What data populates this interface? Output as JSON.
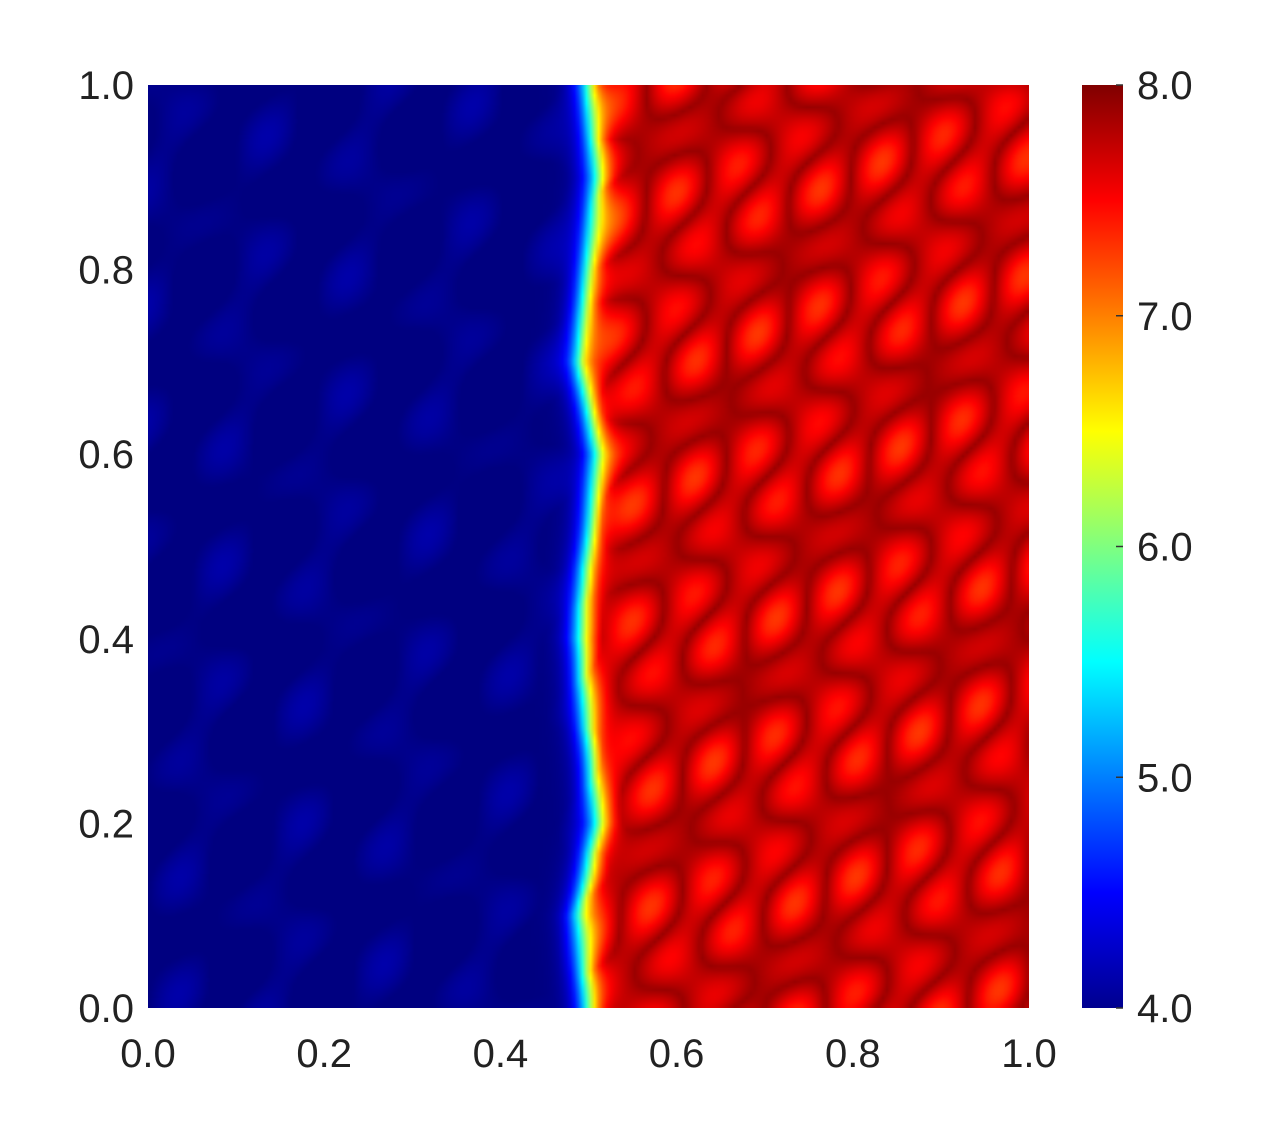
{
  "chart_data": {
    "type": "heatmap",
    "title": "",
    "xlabel": "",
    "ylabel": "",
    "xlim": [
      0.0,
      1.0
    ],
    "ylim": [
      0.0,
      1.0
    ],
    "x_ticks": [
      "0.0",
      "0.2",
      "0.4",
      "0.6",
      "0.8",
      "1.0"
    ],
    "y_ticks": [
      "0.0",
      "0.2",
      "0.4",
      "0.6",
      "0.8",
      "1.0"
    ],
    "colorbar": {
      "colormap": "jet",
      "range": [
        4.0,
        8.0
      ],
      "ticks": [
        "4.0",
        "5.0",
        "6.0",
        "7.0",
        "8.0"
      ]
    },
    "field": {
      "left_value": 4.0,
      "right_value": 7.9,
      "front_x": [
        0.5,
        0.49,
        0.51,
        0.5,
        0.49,
        0.5,
        0.51,
        0.49,
        0.5,
        0.51,
        0.5
      ],
      "front_y": [
        0.0,
        0.1,
        0.2,
        0.3,
        0.4,
        0.5,
        0.6,
        0.7,
        0.8,
        0.9,
        1.0
      ],
      "front_width": 0.035
    },
    "grid": false,
    "legend": "colorbar-right"
  }
}
